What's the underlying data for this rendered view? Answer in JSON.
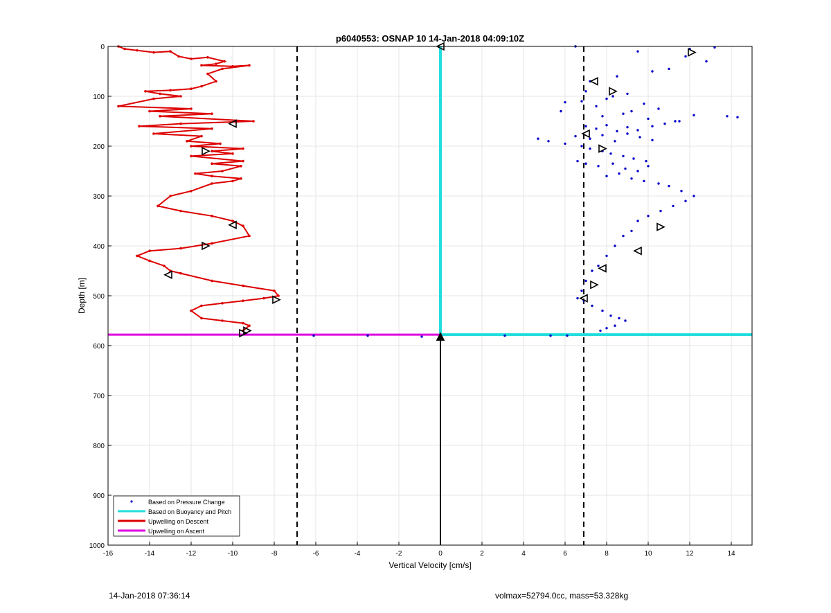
{
  "footer": {
    "timestamp": "14-Jan-2018 07:36:14",
    "volmax_mass": "volmax=52794.0cc, mass=53.328kg"
  },
  "colors": {
    "pressure": "#0000cc",
    "buoyancy": "#22dddd",
    "descent": "#dd0000",
    "ascent": "#dd00dd",
    "grid": "#e6e6e6",
    "dashed": "#000000"
  },
  "chart_data": {
    "type": "scatter",
    "title": "p6040553: OSNAP 10 14-Jan-2018 04:09:10Z",
    "xlabel": "Vertical Velocity [cm/s]",
    "ylabel": "Depth [m]",
    "xlim": [
      -16,
      15
    ],
    "ylim": [
      1000,
      0
    ],
    "y_reversed": true,
    "grid": true,
    "legend_position": "bottom-left",
    "xticks": [
      -16,
      -14,
      -12,
      -10,
      -8,
      -6,
      -4,
      -2,
      0,
      2,
      4,
      6,
      8,
      10,
      12,
      14
    ],
    "yticks": [
      0,
      100,
      200,
      300,
      400,
      500,
      600,
      700,
      800,
      900,
      1000
    ],
    "legend": [
      "Based on Pressure Change",
      "Based on Buoyancy and Pitch",
      "Upwelling on Descent",
      "Upwelling on Ascent"
    ],
    "dashed_lines_x": [
      -6.9,
      6.9
    ],
    "series": [
      {
        "name": "Based on Pressure Change",
        "kind": "scatter",
        "x": [
          6.5,
          12.0,
          13.2,
          11.8,
          12.8,
          9.5,
          8.5,
          10.2,
          11.0,
          7.2,
          7.0,
          8.3,
          9.0,
          6.8,
          7.5,
          8.0,
          9.8,
          10.5,
          6.0,
          5.8,
          7.8,
          8.8,
          9.2,
          10.0,
          11.5,
          12.2,
          14.3,
          13.8,
          7.0,
          7.5,
          8.0,
          8.5,
          9.0,
          9.5,
          10.2,
          10.8,
          11.3,
          6.5,
          7.2,
          7.8,
          8.4,
          9.0,
          9.6,
          10.2,
          4.7,
          5.2,
          6.0,
          6.8,
          7.2,
          7.8,
          8.2,
          8.8,
          9.3,
          9.9,
          6.6,
          7.0,
          7.6,
          8.3,
          8.9,
          9.5,
          10.0,
          8.0,
          8.6,
          9.2,
          9.8,
          10.5,
          11.0,
          11.6,
          12.2,
          11.8,
          11.2,
          10.6,
          10.0,
          9.5,
          9.2,
          8.8,
          8.4,
          8.0,
          7.6,
          7.3,
          7.0,
          6.8,
          6.6,
          6.9,
          7.3,
          7.8,
          8.2,
          8.6,
          8.9,
          8.4,
          8.0,
          7.7,
          6.1,
          5.3,
          3.1,
          -3.5,
          -6.1,
          -0.9
        ],
        "y": [
          0,
          5,
          2,
          20,
          30,
          10,
          60,
          50,
          45,
          70,
          90,
          100,
          95,
          110,
          120,
          105,
          115,
          125,
          112,
          130,
          140,
          135,
          130,
          145,
          150,
          138,
          142,
          140,
          160,
          165,
          158,
          170,
          162,
          168,
          160,
          155,
          150,
          180,
          185,
          178,
          190,
          175,
          182,
          188,
          185,
          190,
          195,
          200,
          205,
          210,
          215,
          220,
          225,
          230,
          230,
          235,
          240,
          235,
          245,
          250,
          240,
          260,
          255,
          265,
          270,
          275,
          280,
          290,
          300,
          310,
          320,
          330,
          340,
          350,
          370,
          380,
          400,
          420,
          440,
          450,
          470,
          490,
          505,
          510,
          520,
          530,
          540,
          545,
          550,
          560,
          565,
          570,
          580,
          580,
          580,
          580,
          580,
          582
        ]
      },
      {
        "name": "Based on Buoyancy and Pitch",
        "kind": "line",
        "x": [
          0,
          0,
          0,
          15
        ],
        "y": [
          0,
          578,
          578,
          578
        ]
      },
      {
        "name": "Upwelling on Descent",
        "kind": "line",
        "x": [
          -15.5,
          -15.2,
          -14.6,
          -13.8,
          -13.0,
          -12.6,
          -12.0,
          -11.2,
          -10.4,
          -10.8,
          -11.5,
          -10.0,
          -9.2,
          -10.5,
          -11.2,
          -10.8,
          -11.5,
          -12.0,
          -13.0,
          -14.2,
          -13.5,
          -12.5,
          -13.8,
          -15.5,
          -12.0,
          -14.0,
          -11.0,
          -13.5,
          -9.0,
          -12.5,
          -14.5,
          -11.0,
          -13.8,
          -11.5,
          -12.2,
          -10.6,
          -12.0,
          -9.5,
          -11.0,
          -10.0,
          -12.0,
          -9.5,
          -11.0,
          -9.6,
          -10.5,
          -11.8,
          -11.0,
          -9.6,
          -10.0,
          -11.0,
          -12.0,
          -13.0,
          -13.6,
          -12.5,
          -11.0,
          -10.0,
          -9.5,
          -9.2,
          -11.0,
          -12.5,
          -14.0,
          -14.6,
          -14.0,
          -13.3,
          -13.0,
          -12.5,
          -11.0,
          -9.5,
          -8.0,
          -7.8,
          -8.5,
          -9.5,
          -10.5,
          -11.5,
          -12.0,
          -11.5,
          -10.5,
          -9.5,
          -9.2,
          -9.5
        ],
        "y": [
          0,
          5,
          8,
          12,
          10,
          20,
          25,
          22,
          30,
          35,
          38,
          40,
          38,
          45,
          55,
          70,
          80,
          85,
          88,
          90,
          95,
          100,
          105,
          120,
          125,
          130,
          135,
          140,
          150,
          155,
          160,
          165,
          175,
          180,
          190,
          195,
          200,
          205,
          210,
          215,
          220,
          230,
          235,
          240,
          250,
          255,
          260,
          265,
          270,
          275,
          290,
          300,
          320,
          330,
          340,
          350,
          360,
          380,
          395,
          405,
          410,
          420,
          430,
          440,
          450,
          455,
          470,
          480,
          490,
          500,
          505,
          510,
          515,
          520,
          530,
          545,
          550,
          555,
          560,
          570
        ]
      },
      {
        "name": "Upwelling on Ascent",
        "kind": "line",
        "x": [
          -16,
          -9.5,
          -4,
          0
        ],
        "y": [
          578,
          578,
          578,
          578
        ]
      }
    ],
    "markers_left": [
      {
        "x": -10.0,
        "y": 155,
        "dir": "left"
      },
      {
        "x": -11.3,
        "y": 210,
        "dir": "right"
      },
      {
        "x": -10.0,
        "y": 358,
        "dir": "left"
      },
      {
        "x": -11.3,
        "y": 400,
        "dir": "right"
      },
      {
        "x": -13.1,
        "y": 458,
        "dir": "left"
      },
      {
        "x": -7.9,
        "y": 508,
        "dir": "right"
      },
      {
        "x": -9.5,
        "y": 575,
        "dir": "right"
      },
      {
        "x": -9.3,
        "y": 570,
        "dir": "right"
      }
    ],
    "markers_right": [
      {
        "x": 12.1,
        "y": 12,
        "dir": "right"
      },
      {
        "x": 7.4,
        "y": 70,
        "dir": "left"
      },
      {
        "x": 8.3,
        "y": 90,
        "dir": "right"
      },
      {
        "x": 7.0,
        "y": 175,
        "dir": "left"
      },
      {
        "x": 7.8,
        "y": 205,
        "dir": "right"
      },
      {
        "x": 10.6,
        "y": 362,
        "dir": "right"
      },
      {
        "x": 9.5,
        "y": 410,
        "dir": "left"
      },
      {
        "x": 7.8,
        "y": 445,
        "dir": "left"
      },
      {
        "x": 7.4,
        "y": 478,
        "dir": "right"
      },
      {
        "x": 6.9,
        "y": 505,
        "dir": "left"
      }
    ],
    "markers_center": [
      {
        "x": 0,
        "y": 0,
        "dir": "left"
      },
      {
        "x": 0,
        "y": 582,
        "dir": "up"
      }
    ],
    "black_line": {
      "x": [
        0,
        0
      ],
      "y": [
        582,
        1000
      ]
    }
  }
}
